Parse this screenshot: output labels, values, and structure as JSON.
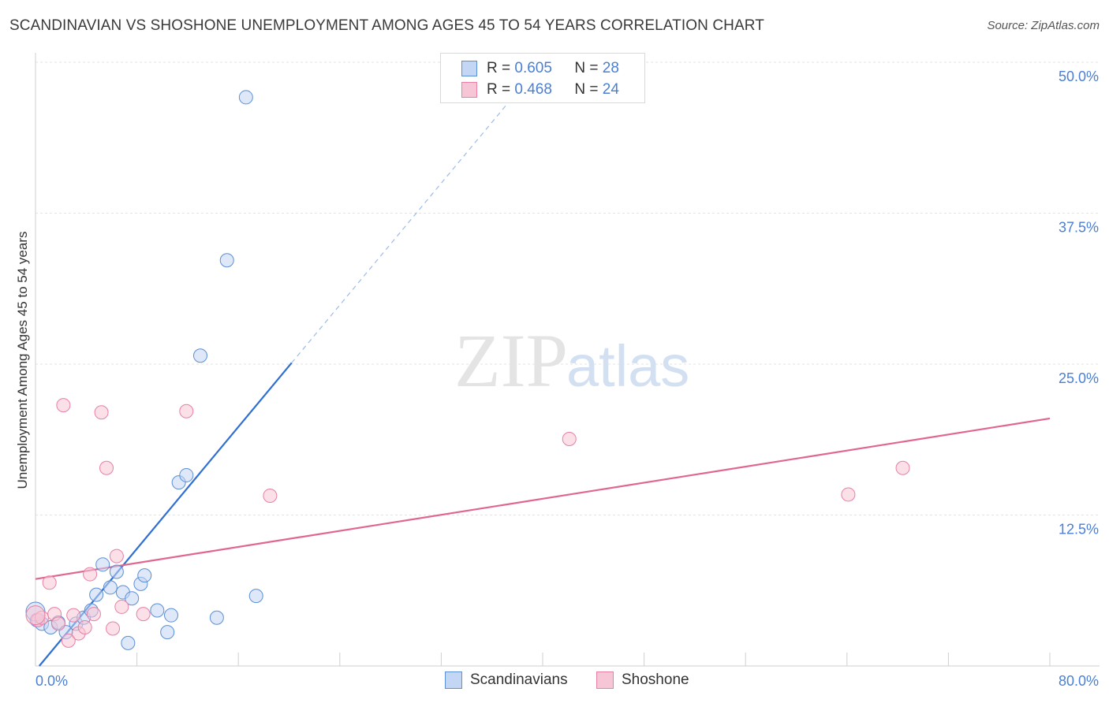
{
  "chart_data": {
    "type": "scatter",
    "title": "SCANDINAVIAN VS SHOSHONE UNEMPLOYMENT AMONG AGES 45 TO 54 YEARS CORRELATION CHART",
    "source": "Source: ZipAtlas.com",
    "ylabel": "Unemployment Among Ages 45 to 54 years",
    "xlabel": "",
    "xlim": [
      0,
      80
    ],
    "ylim": [
      0,
      50
    ],
    "x_tick_labels": [
      "0.0%",
      "80.0%"
    ],
    "y_ticks": [
      12.5,
      25.0,
      37.5,
      50.0
    ],
    "y_tick_labels": [
      "12.5%",
      "25.0%",
      "37.5%",
      "50.0%"
    ],
    "watermark": {
      "zip": "ZIP",
      "atlas": "atlas"
    },
    "colors": {
      "blue": "#5b8fd6",
      "pink": "#e87fa6",
      "blue_fill": "#c3d6f3",
      "pink_fill": "#f7c6d6",
      "tick": "#4a7fd4"
    },
    "legend": {
      "r_label": "R =",
      "n_label": "N =",
      "entries": [
        {
          "r": "0.605",
          "n": "28"
        },
        {
          "r": "0.468",
          "n": "24"
        }
      ]
    },
    "series": [
      {
        "name": "Scandinavians",
        "color": "#5b8fd6",
        "trend": {
          "x0": 0.3,
          "y0": 0.0,
          "x1": 20.2,
          "y1": 25.1,
          "dash_to_x": 37.5
        },
        "points": [
          [
            0.1,
            3.8
          ],
          [
            0.5,
            3.5
          ],
          [
            1.2,
            3.2
          ],
          [
            1.8,
            3.6
          ],
          [
            2.4,
            2.8
          ],
          [
            3.2,
            3.5
          ],
          [
            3.8,
            4.0
          ],
          [
            4.4,
            4.6
          ],
          [
            4.8,
            5.9
          ],
          [
            5.3,
            8.4
          ],
          [
            5.9,
            6.5
          ],
          [
            6.4,
            7.8
          ],
          [
            6.9,
            6.1
          ],
          [
            7.6,
            5.6
          ],
          [
            8.3,
            6.8
          ],
          [
            8.6,
            7.5
          ],
          [
            9.6,
            4.6
          ],
          [
            10.4,
            2.8
          ],
          [
            10.7,
            4.2
          ],
          [
            11.3,
            15.2
          ],
          [
            11.9,
            15.8
          ],
          [
            13.0,
            25.7
          ],
          [
            14.3,
            4.0
          ],
          [
            15.1,
            33.6
          ],
          [
            16.6,
            47.1
          ],
          [
            17.4,
            5.8
          ],
          [
            7.3,
            1.9
          ],
          [
            0.0,
            4.5
          ]
        ]
      },
      {
        "name": "Shoshone",
        "color": "#e87fa6",
        "trend": {
          "x0": 0.0,
          "y0": 7.2,
          "x1": 80.0,
          "y1": 20.5
        },
        "points": [
          [
            0.2,
            3.8
          ],
          [
            0.5,
            4.0
          ],
          [
            1.1,
            6.9
          ],
          [
            1.5,
            4.3
          ],
          [
            1.8,
            3.5
          ],
          [
            2.2,
            21.6
          ],
          [
            2.6,
            2.1
          ],
          [
            3.0,
            4.2
          ],
          [
            3.4,
            2.7
          ],
          [
            3.9,
            3.2
          ],
          [
            4.6,
            4.3
          ],
          [
            4.3,
            7.6
          ],
          [
            5.2,
            21.0
          ],
          [
            5.6,
            16.4
          ],
          [
            6.1,
            3.1
          ],
          [
            6.4,
            9.1
          ],
          [
            6.8,
            4.9
          ],
          [
            8.5,
            4.3
          ],
          [
            11.9,
            21.1
          ],
          [
            18.5,
            14.1
          ],
          [
            42.1,
            18.8
          ],
          [
            64.1,
            14.2
          ],
          [
            68.4,
            16.4
          ],
          [
            0.0,
            4.2
          ]
        ]
      }
    ]
  }
}
